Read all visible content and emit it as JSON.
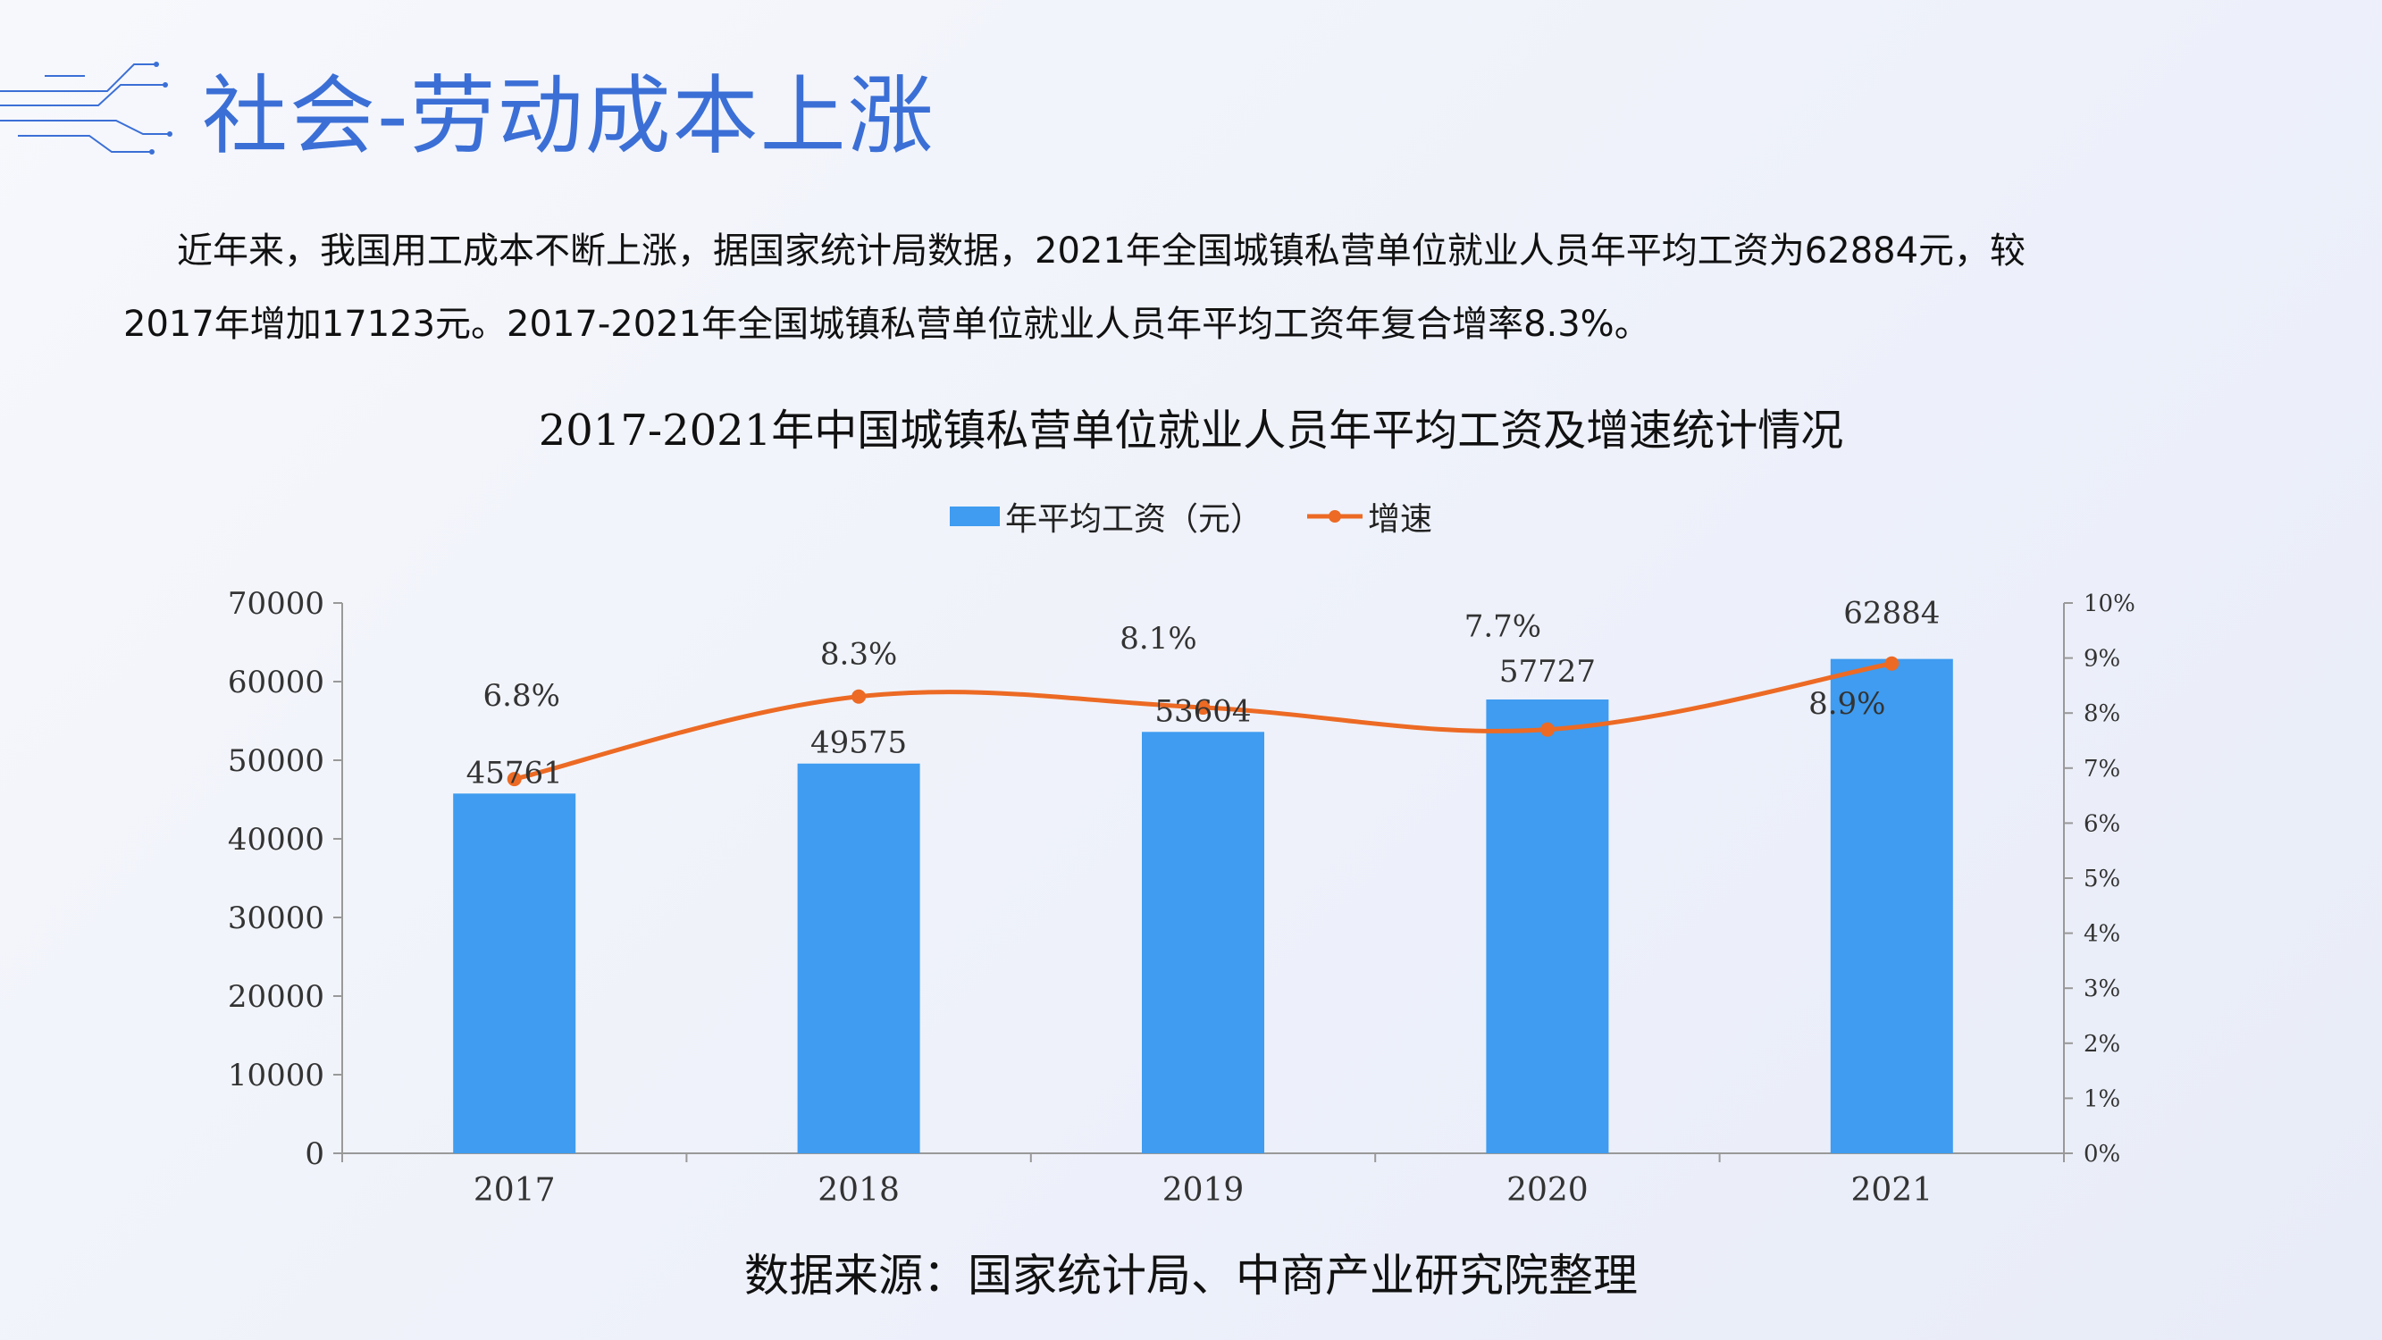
{
  "page": {
    "title": "社会-劳动成本上涨",
    "paragraph": {
      "line1": "近年来，我国用工成本不断上涨，据国家统计局数据，2021年全国城镇私营单位就业人员年平均工资为62884元，较",
      "line2": "2017年增加17123元。2017-2021年全国城镇私营单位就业人员年平均工资年复合增率8.3%。"
    },
    "source": "数据来源：国家统计局、中商产业研究院整理"
  },
  "chart_data": {
    "type": "bar",
    "title": "2017-2021年中国城镇私营单位就业人员年平均工资及增速统计情况",
    "categories": [
      "2017",
      "2018",
      "2019",
      "2020",
      "2021"
    ],
    "series": [
      {
        "name": "年平均工资（元）",
        "type": "bar",
        "axis": "left",
        "color": "#3f9cf0",
        "values": [
          45761,
          49575,
          53604,
          57727,
          62884
        ],
        "labels": [
          "45761",
          "49575",
          "53604",
          "57727",
          "62884"
        ]
      },
      {
        "name": "增速",
        "type": "line",
        "axis": "right",
        "color": "#ec6a24",
        "values": [
          6.8,
          8.3,
          8.1,
          7.7,
          8.9
        ],
        "labels": [
          "6.8%",
          "8.3%",
          "8.1%",
          "7.7%",
          "8.9%"
        ]
      }
    ],
    "y_left": {
      "min": 0,
      "max": 70000,
      "ticks": [
        "0",
        "10000",
        "20000",
        "30000",
        "40000",
        "50000",
        "60000",
        "70000"
      ]
    },
    "y_right": {
      "min": 0,
      "max": 10,
      "ticks": [
        "0%",
        "1%",
        "2%",
        "3%",
        "4%",
        "5%",
        "6%",
        "7%",
        "8%",
        "9%",
        "10%"
      ]
    },
    "legend_position": "top-center",
    "grid": false
  }
}
